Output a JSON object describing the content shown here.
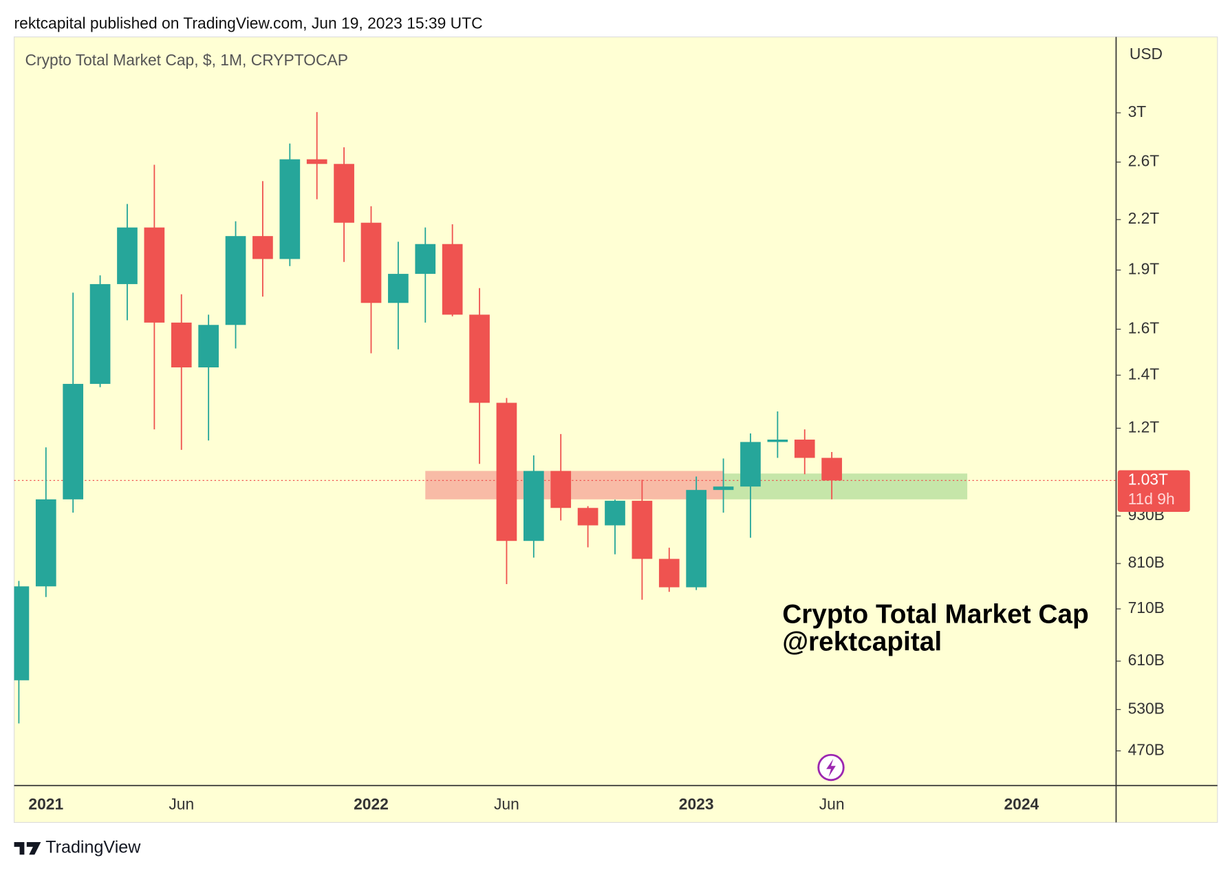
{
  "header": "rektcapital published on TradingView.com, Jun 19, 2023 15:39 UTC",
  "footer": "TradingView",
  "chart_data": {
    "type": "candlestick",
    "title": "Crypto Total Market Cap, $, 1M, CRYPTOCAP",
    "y_axis_label": "USD",
    "annotation": [
      "Crypto Total Market Cap",
      "@rektcapital"
    ],
    "categories": [
      null,
      "2021",
      null,
      null,
      null,
      null,
      "Jun",
      null,
      null,
      null,
      null,
      null,
      null,
      "2022",
      null,
      null,
      null,
      null,
      "Jun",
      null,
      null,
      null,
      null,
      null,
      null,
      "2023",
      null,
      null,
      null,
      null,
      "Jun",
      null,
      null,
      null,
      null,
      null,
      null,
      "2024",
      null,
      null,
      null
    ],
    "open": [
      577,
      758,
      976,
      1365,
      1824,
      2150,
      1631,
      1432,
      1620,
      2097,
      1962,
      2621,
      2586,
      2180,
      1727,
      1879,
      2049,
      1669,
      1292,
      865,
      1060,
      952,
      905,
      972,
      821,
      756,
      1003,
      1013,
      1153,
      1161,
      1101,
      null,
      null,
      null,
      null,
      null,
      null,
      null,
      null,
      null,
      null
    ],
    "high": [
      770,
      1135,
      1779,
      1871,
      2302,
      2580,
      1771,
      1669,
      2189,
      2460,
      2744,
      3007,
      2714,
      2287,
      2063,
      2150,
      2170,
      1803,
      1310,
      1109,
      1180,
      957,
      975,
      1033,
      848,
      1043,
      1099,
      1182,
      1260,
      1196,
      1120,
      null,
      null,
      null,
      null,
      null,
      null,
      null,
      null,
      null,
      null
    ],
    "low": [
      509,
      735,
      939,
      1352,
      1642,
      1196,
      1127,
      1158,
      1513,
      1759,
      1922,
      2334,
      1945,
      1492,
      1509,
      1631,
      1661,
      1082,
      763,
      824,
      918,
      849,
      832,
      729,
      746,
      750,
      939,
      873,
      1101,
      1050,
      976,
      null,
      null,
      null,
      null,
      null,
      null,
      null,
      null,
      null,
      null
    ],
    "close": [
      758,
      976,
      1365,
      1824,
      2150,
      1631,
      1432,
      1620,
      2097,
      1962,
      2621,
      2586,
      2180,
      1727,
      1879,
      2049,
      1669,
      1292,
      865,
      1060,
      952,
      905,
      972,
      821,
      756,
      1003,
      1013,
      1153,
      1161,
      1101,
      1031,
      null,
      null,
      null,
      null,
      null,
      null,
      null,
      null,
      null,
      null
    ],
    "up_color": "#26a69a",
    "down_color": "#ef5350",
    "ylim": [
      425,
      3740
    ],
    "log_scale": true,
    "grid": false,
    "yticks": [
      {
        "value": 3000,
        "label": "3T"
      },
      {
        "value": 2600,
        "label": "2.6T"
      },
      {
        "value": 2200,
        "label": "2.2T"
      },
      {
        "value": 1900,
        "label": "1.9T"
      },
      {
        "value": 1600,
        "label": "1.6T"
      },
      {
        "value": 1400,
        "label": "1.4T"
      },
      {
        "value": 1200,
        "label": "1.2T"
      },
      {
        "value": 930,
        "label": "930B"
      },
      {
        "value": 810,
        "label": "810B"
      },
      {
        "value": 710,
        "label": "710B"
      },
      {
        "value": 610,
        "label": "610B"
      },
      {
        "value": 530,
        "label": "530B"
      },
      {
        "value": 470,
        "label": "470B"
      }
    ],
    "zones": [
      {
        "x0": 15,
        "x1": 26,
        "y0": 976,
        "y1": 1060,
        "color": "#f8bba6"
      },
      {
        "x0": 26,
        "x1": 35,
        "y0": 976,
        "y1": 1052,
        "color": "#c6e6a9"
      }
    ],
    "price_label": "1.03T",
    "countdown_label": "11d 9h"
  }
}
